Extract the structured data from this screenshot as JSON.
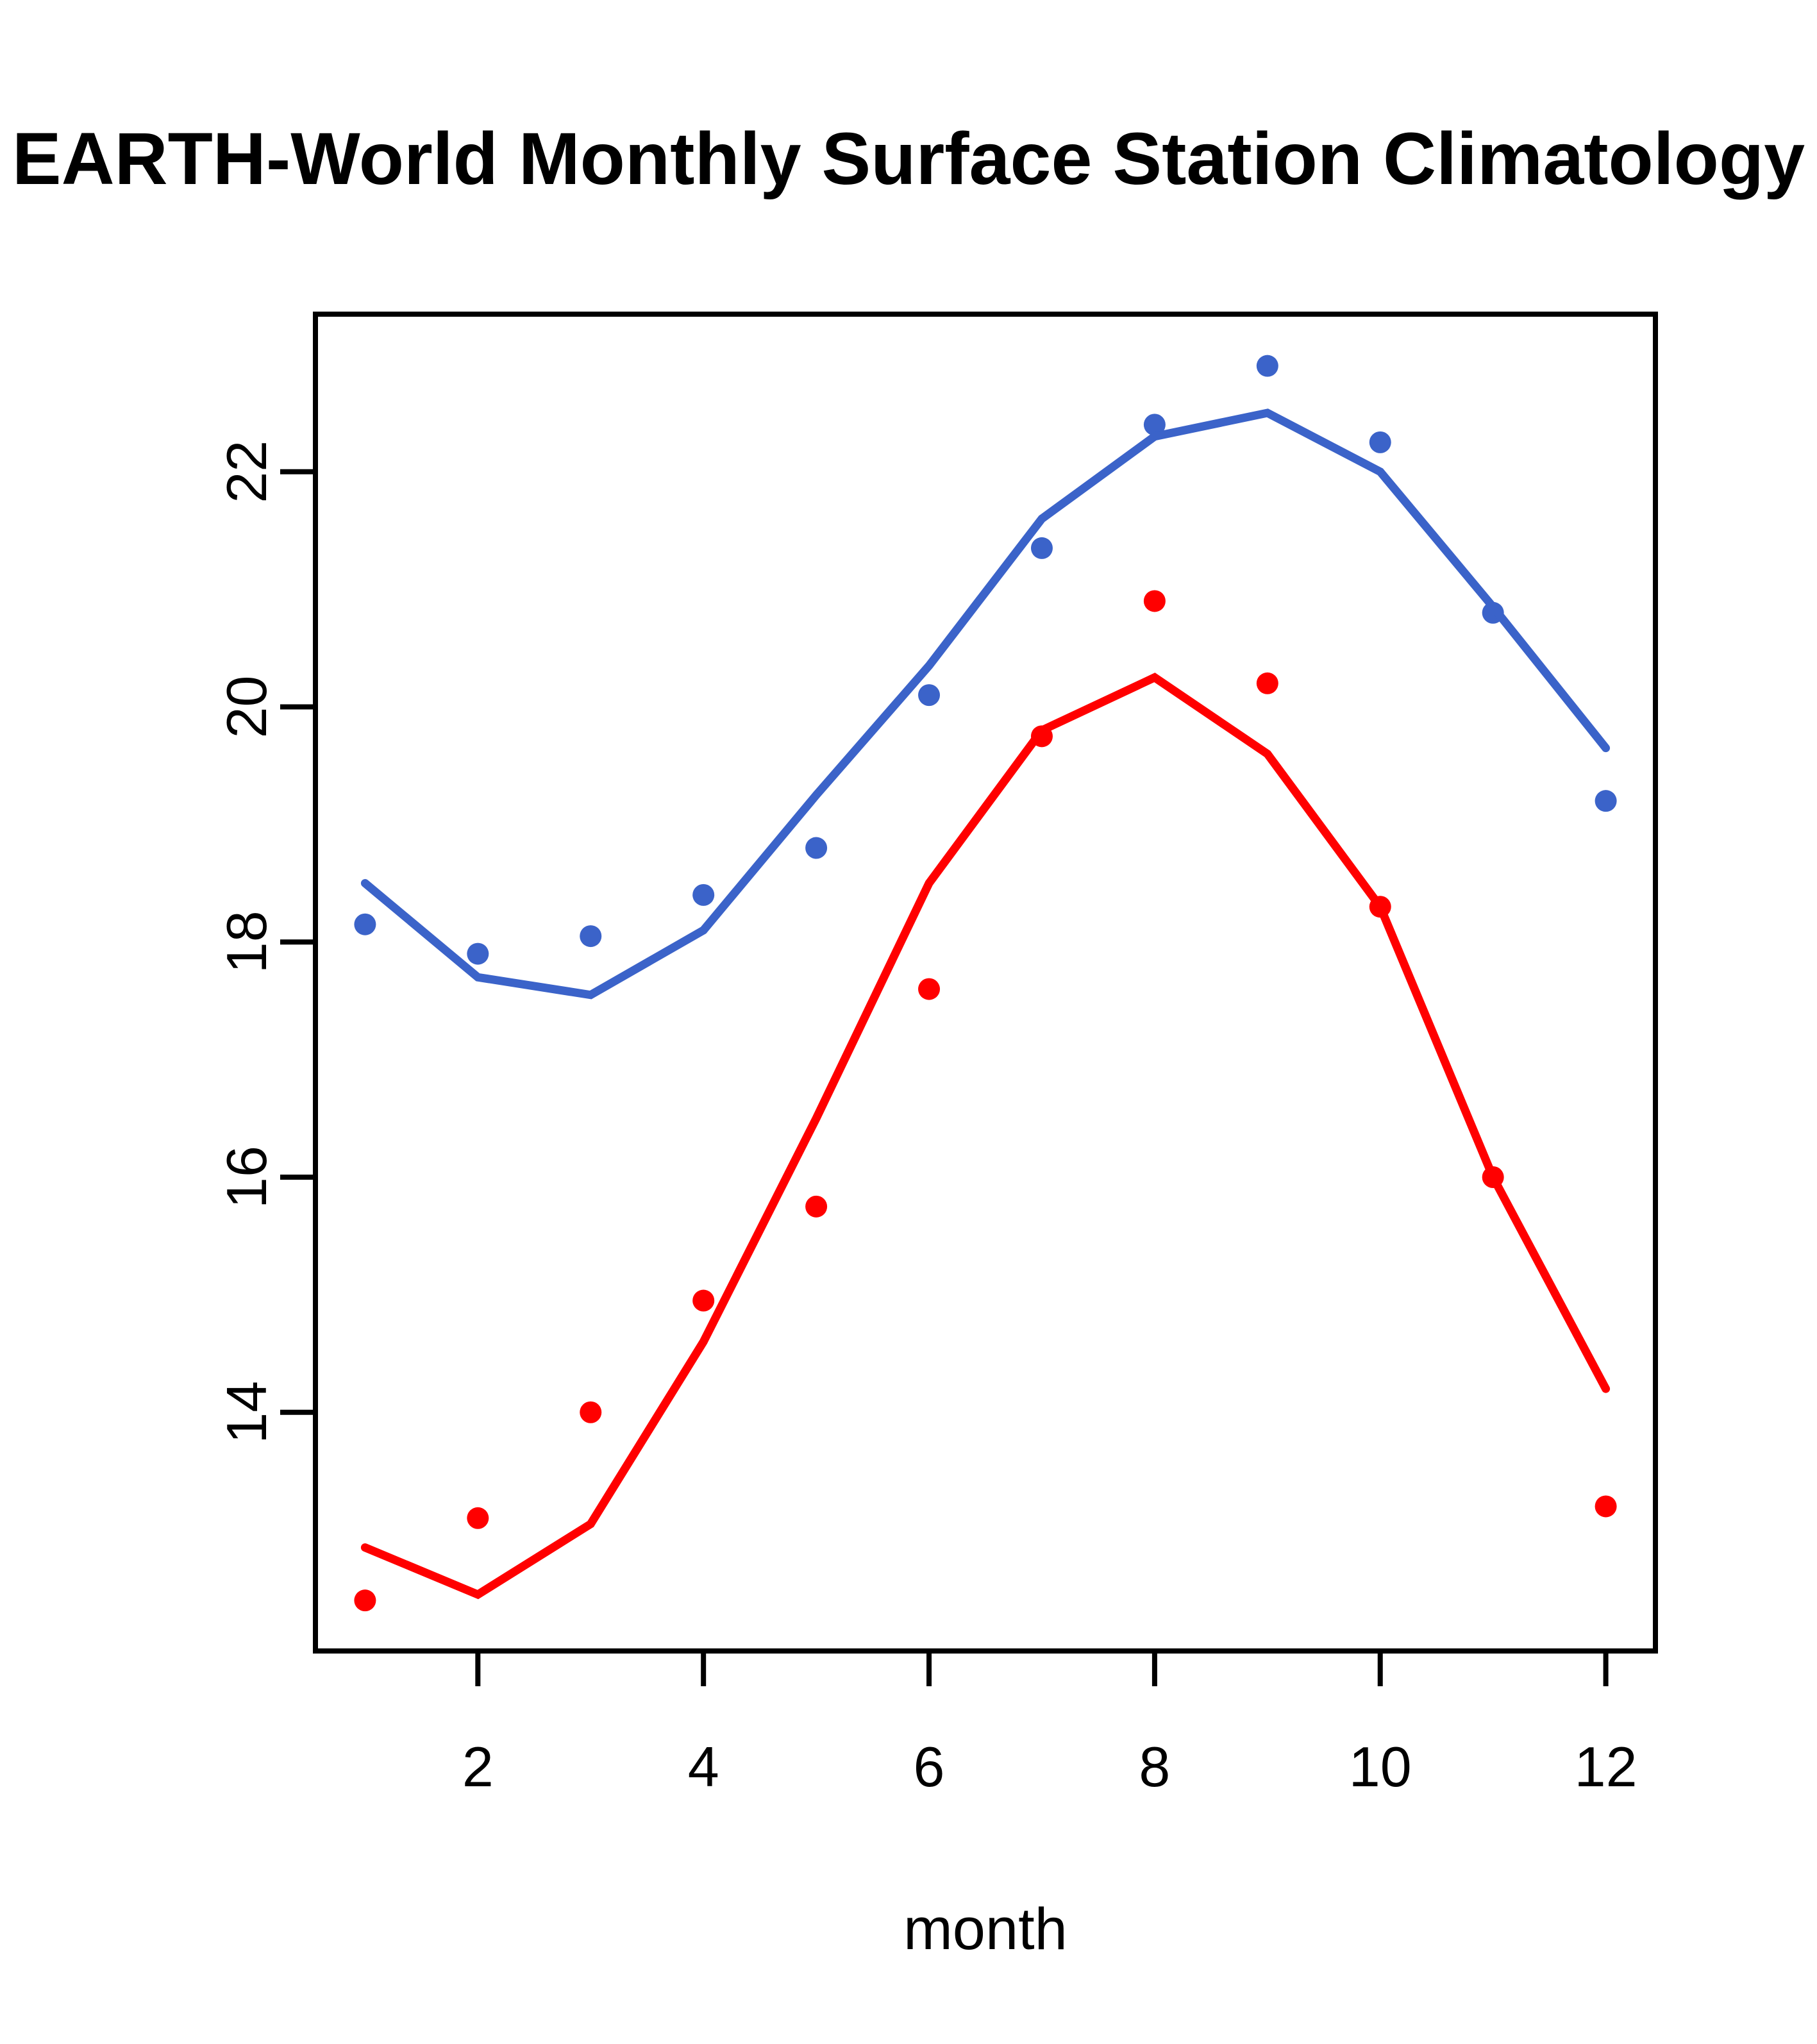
{
  "title": "EARTH-World Monthly Surface Station Climatology",
  "chart_data": {
    "type": "line",
    "title": "EARTH-World Monthly Surface Station Climatology",
    "xlabel": "month",
    "ylabel": "",
    "x": [
      1,
      2,
      3,
      4,
      5,
      6,
      7,
      8,
      9,
      10,
      11,
      12
    ],
    "xticks": [
      2,
      4,
      6,
      8,
      10,
      12
    ],
    "yticks": [
      14,
      16,
      18,
      20,
      22
    ],
    "xlim": [
      0.56,
      12.44
    ],
    "ylim": [
      11.97,
      23.34
    ],
    "grid": false,
    "legend": null,
    "series": [
      {
        "name": "blue-observations",
        "kind": "points",
        "color": "#3B63C9",
        "values": [
          18.15,
          17.9,
          18.05,
          18.4,
          18.8,
          20.1,
          21.35,
          22.4,
          22.9,
          22.25,
          20.8,
          19.2
        ]
      },
      {
        "name": "blue-fitted-line",
        "kind": "line",
        "color": "#3B63C9",
        "values": [
          18.5,
          17.7,
          17.55,
          18.1,
          19.25,
          20.35,
          21.6,
          22.3,
          22.5,
          22.0,
          20.85,
          19.65
        ]
      },
      {
        "name": "red-observations",
        "kind": "points",
        "color": "#FF0000",
        "values": [
          12.4,
          13.1,
          14.0,
          14.95,
          15.75,
          17.6,
          19.75,
          20.9,
          20.2,
          18.3,
          16.0,
          13.2
        ]
      },
      {
        "name": "red-fitted-line",
        "kind": "line",
        "color": "#FF0000",
        "values": [
          12.85,
          12.45,
          13.05,
          14.6,
          16.5,
          18.5,
          19.8,
          20.25,
          19.6,
          18.3,
          16.0,
          14.2
        ]
      }
    ],
    "axis_color": "#000000"
  }
}
